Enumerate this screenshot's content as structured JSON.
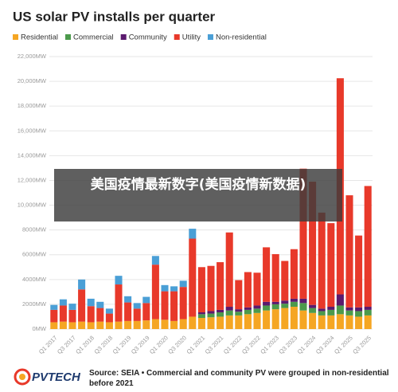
{
  "chart_data": {
    "type": "bar",
    "stacked": true,
    "title": "US solar PV installs per quarter",
    "categories": [
      "Q1 2017",
      null,
      "Q3 2017",
      null,
      "Q1 2018",
      null,
      "Q3 2018",
      null,
      "Q1 2019",
      null,
      "Q3 2019",
      null,
      "Q1 2020",
      null,
      "Q3 2020",
      null,
      "Q1 2021",
      null,
      "Q3 2021",
      null,
      "Q1 2022",
      null,
      "Q3 2022",
      null,
      "Q1 2023",
      null,
      "Q3 2023",
      null,
      "Q1 2024",
      null,
      "Q3 2024",
      null,
      "Q1 2025",
      null,
      "Q3 2025"
    ],
    "series": [
      {
        "name": "Residential",
        "color": "#f5a623",
        "values": [
          550,
          600,
          550,
          600,
          550,
          600,
          550,
          600,
          650,
          650,
          700,
          800,
          750,
          650,
          800,
          1000,
          900,
          950,
          1000,
          1100,
          1100,
          1200,
          1300,
          1500,
          1600,
          1700,
          1800,
          1500,
          1300,
          1100,
          1100,
          1200,
          1100,
          1000,
          1100
        ]
      },
      {
        "name": "Commercial",
        "color": "#4c9a4c",
        "values": [
          null,
          null,
          null,
          null,
          null,
          null,
          null,
          null,
          null,
          null,
          null,
          null,
          null,
          null,
          null,
          null,
          300,
          300,
          350,
          400,
          300,
          350,
          350,
          400,
          400,
          350,
          400,
          600,
          400,
          350,
          450,
          700,
          400,
          450,
          450
        ]
      },
      {
        "name": "Community",
        "color": "#5b1a6e",
        "values": [
          null,
          null,
          null,
          null,
          null,
          null,
          null,
          null,
          null,
          null,
          null,
          null,
          null,
          null,
          null,
          null,
          150,
          200,
          200,
          300,
          200,
          200,
          250,
          300,
          200,
          250,
          250,
          350,
          250,
          200,
          250,
          900,
          250,
          300,
          250
        ]
      },
      {
        "name": "Utility",
        "color": "#e8392a",
        "values": [
          1000,
          1300,
          1000,
          2600,
          1300,
          1100,
          700,
          3000,
          1500,
          1000,
          1400,
          4400,
          2300,
          2400,
          2600,
          6300,
          3650,
          3650,
          3850,
          6000,
          2350,
          2850,
          2650,
          4400,
          3850,
          3200,
          4000,
          10500,
          9950,
          7750,
          6750,
          17450,
          9050,
          5800,
          9750
        ]
      },
      {
        "name": "Non-residential",
        "color": "#4a9fd6",
        "values": [
          400,
          500,
          500,
          800,
          600,
          500,
          400,
          700,
          500,
          450,
          500,
          700,
          500,
          400,
          500,
          800,
          null,
          null,
          null,
          null,
          null,
          null,
          null,
          null,
          null,
          null,
          null,
          null,
          null,
          null,
          null,
          null,
          null,
          null,
          null
        ]
      }
    ],
    "ylim": [
      0,
      22000
    ],
    "yticks": [
      {
        "value": 0,
        "label": "0MW"
      },
      {
        "value": 2000,
        "label": "2000MW"
      },
      {
        "value": 4000,
        "label": "4000MW"
      },
      {
        "value": 6000,
        "label": "6000MW"
      },
      {
        "value": 8000,
        "label": "8000MW"
      },
      {
        "value": 10000,
        "label": "10,000MW"
      },
      {
        "value": 12000,
        "label": "12,000MW"
      },
      {
        "value": 14000,
        "label": "14,000MW"
      },
      {
        "value": 16000,
        "label": "16,000MW"
      },
      {
        "value": 18000,
        "label": "18,000MW"
      },
      {
        "value": 20000,
        "label": "20,000MW"
      },
      {
        "value": 22000,
        "label": "22,000MW"
      }
    ],
    "grid": true,
    "legend": "top"
  },
  "overlay_caption": "美国疫情最新数字(美国疫情新数据)",
  "footer": {
    "logo": "PVTECH",
    "source": "Source: SEIA • Commercial and community PV were grouped in non-residential before 2021"
  }
}
